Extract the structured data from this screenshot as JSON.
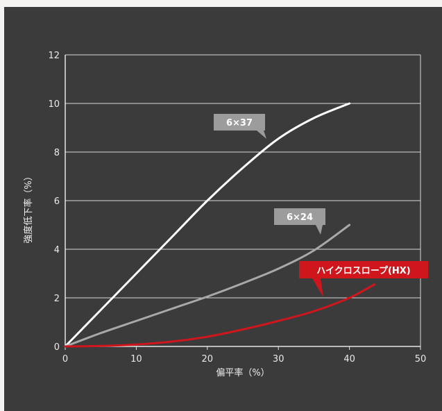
{
  "chart_data": {
    "type": "line",
    "xlabel": "偏平率（%）",
    "ylabel": "強度低下率（%）",
    "xlim": [
      0,
      50
    ],
    "ylim": [
      0,
      12
    ],
    "xticks": [
      0,
      10,
      20,
      30,
      40,
      50
    ],
    "yticks": [
      0,
      2,
      4,
      6,
      8,
      10,
      12
    ],
    "grid": true,
    "series": [
      {
        "name": "6×37",
        "color": "#ffffff",
        "x": [
          0,
          5,
          10,
          15,
          20,
          25,
          30,
          35,
          40
        ],
        "y": [
          0,
          1.5,
          3.0,
          4.5,
          6.0,
          7.35,
          8.55,
          9.4,
          10.0
        ]
      },
      {
        "name": "6×24",
        "color": "#a9a9a9",
        "x": [
          0,
          5,
          10,
          15,
          20,
          25,
          30,
          35,
          40
        ],
        "y": [
          0,
          0.55,
          1.05,
          1.55,
          2.05,
          2.6,
          3.2,
          3.95,
          5.0
        ]
      },
      {
        "name": "ハイクロスロープ(HX)",
        "color": "#d0161d",
        "x": [
          0,
          5,
          10,
          15,
          20,
          25,
          30,
          35,
          40,
          43.5
        ],
        "y": [
          0,
          0.02,
          0.08,
          0.2,
          0.4,
          0.7,
          1.05,
          1.45,
          2.0,
          2.55
        ]
      }
    ]
  }
}
